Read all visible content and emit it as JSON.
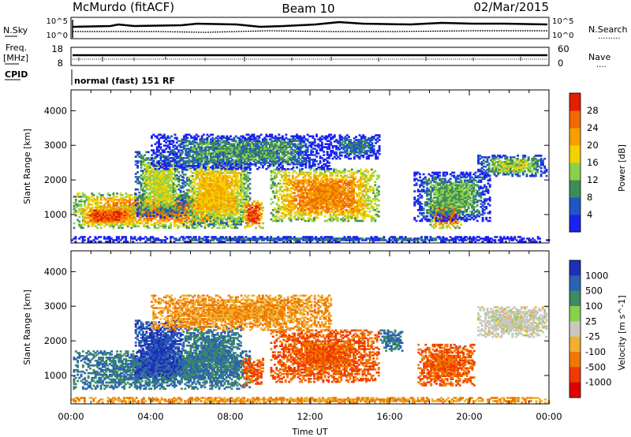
{
  "header": {
    "station": "McMurdo (fitACF)",
    "beam": "Beam 10",
    "date": "02/Mar/2015"
  },
  "strip": {
    "nsky_label": "N.Sky",
    "nsearch_label": "N.Search",
    "freq_label_1": "Freq.",
    "freq_label_2": "[MHz]",
    "nave_label": "Nave",
    "cpid_label": "CPID",
    "cpid_value": "normal (fast) 151 RF",
    "noise_ticks": [
      "10^5",
      "10^0"
    ],
    "freq_ticks": [
      "18",
      "8"
    ],
    "nave_ticks": [
      "60",
      "0"
    ]
  },
  "colors": {
    "power": [
      "#1a22f0",
      "#1f57c4",
      "#3f8c5a",
      "#8ad04a",
      "#f2d200",
      "#f5a000",
      "#f06a00",
      "#e51e00"
    ],
    "velocity": [
      "#1e2fb8",
      "#2b62b4",
      "#3d8a64",
      "#86d24a",
      "#c8c8c0",
      "#f0b030",
      "#f07800",
      "#f03a00",
      "#e00000"
    ]
  },
  "chart_data": [
    {
      "type": "heatmap",
      "title": "Power",
      "ylabel": "Slant Range [km]",
      "xlabel": "",
      "x_ticks": [
        "00:00",
        "04:00",
        "08:00",
        "12:00",
        "16:00",
        "20:00",
        "00:00"
      ],
      "y_ticks": [
        "1000",
        "2000",
        "3000",
        "4000"
      ],
      "xlim_hours": [
        0,
        24
      ],
      "ylim_km": [
        180,
        4600
      ],
      "colorbar": {
        "label": "Power [dB]",
        "ticks": [
          "4",
          "8",
          "12",
          "16",
          "20",
          "24",
          "28"
        ],
        "range": [
          0,
          32
        ]
      },
      "regions": [
        {
          "t0": 0.1,
          "t1": 8.5,
          "r0": 600,
          "r1": 1600,
          "value": 24
        },
        {
          "t0": 0.4,
          "t1": 3.2,
          "r0": 700,
          "r1": 1200,
          "value": 28
        },
        {
          "t0": 3.2,
          "t1": 5.6,
          "r0": 900,
          "r1": 2800,
          "value": 16
        },
        {
          "t0": 5.6,
          "t1": 9.0,
          "r0": 700,
          "r1": 2600,
          "value": 20
        },
        {
          "t0": 8.6,
          "t1": 9.6,
          "r0": 600,
          "r1": 1400,
          "value": 28
        },
        {
          "t0": 10.0,
          "t1": 15.4,
          "r0": 800,
          "r1": 2300,
          "value": 24
        },
        {
          "t0": 4.0,
          "t1": 13.0,
          "r0": 2300,
          "r1": 3300,
          "value": 10
        },
        {
          "t0": 13.0,
          "t1": 15.5,
          "r0": 2600,
          "r1": 3300,
          "value": 8
        },
        {
          "t0": 18.0,
          "t1": 19.6,
          "r0": 600,
          "r1": 1400,
          "value": 26
        },
        {
          "t0": 17.2,
          "t1": 21.0,
          "r0": 800,
          "r1": 2200,
          "value": 12
        },
        {
          "t0": 20.4,
          "t1": 23.9,
          "r0": 2100,
          "r1": 2700,
          "value": 14
        },
        {
          "t0": 0.0,
          "t1": 24.0,
          "r0": 200,
          "r1": 350,
          "value": 6
        }
      ]
    },
    {
      "type": "heatmap",
      "title": "Velocity",
      "ylabel": "Slant Range [km]",
      "xlabel": "Time UT",
      "x_ticks": [
        "00:00",
        "04:00",
        "08:00",
        "12:00",
        "16:00",
        "20:00",
        "00:00"
      ],
      "y_ticks": [
        "1000",
        "2000",
        "3000",
        "4000"
      ],
      "xlim_hours": [
        0,
        24
      ],
      "ylim_km": [
        180,
        4600
      ],
      "colorbar": {
        "label": "Velocity [m s^-1]",
        "ticks": [
          "1000",
          "500",
          "100",
          "25",
          "-25",
          "-100",
          "-500",
          "-1000"
        ]
      },
      "regions": [
        {
          "t0": 0.1,
          "t1": 9.0,
          "r0": 600,
          "r1": 1700,
          "value": 300
        },
        {
          "t0": 3.2,
          "t1": 5.6,
          "r0": 900,
          "r1": 2600,
          "value": 800
        },
        {
          "t0": 5.6,
          "t1": 8.5,
          "r0": 900,
          "r1": 2400,
          "value": 300
        },
        {
          "t0": 8.6,
          "t1": 9.6,
          "r0": 700,
          "r1": 1500,
          "value": -300
        },
        {
          "t0": 10.0,
          "t1": 15.4,
          "r0": 800,
          "r1": 2300,
          "value": -300
        },
        {
          "t0": 4.0,
          "t1": 13.0,
          "r0": 2300,
          "r1": 3300,
          "value": -60
        },
        {
          "t0": 15.5,
          "t1": 16.6,
          "r0": 1700,
          "r1": 2300,
          "value": 300
        },
        {
          "t0": 17.4,
          "t1": 20.2,
          "r0": 700,
          "r1": 1900,
          "value": -300
        },
        {
          "t0": 20.4,
          "t1": 23.9,
          "r0": 2100,
          "r1": 3000,
          "value": 0
        },
        {
          "t0": 0.0,
          "t1": 24.0,
          "r0": 200,
          "r1": 350,
          "value": -60
        }
      ]
    }
  ]
}
